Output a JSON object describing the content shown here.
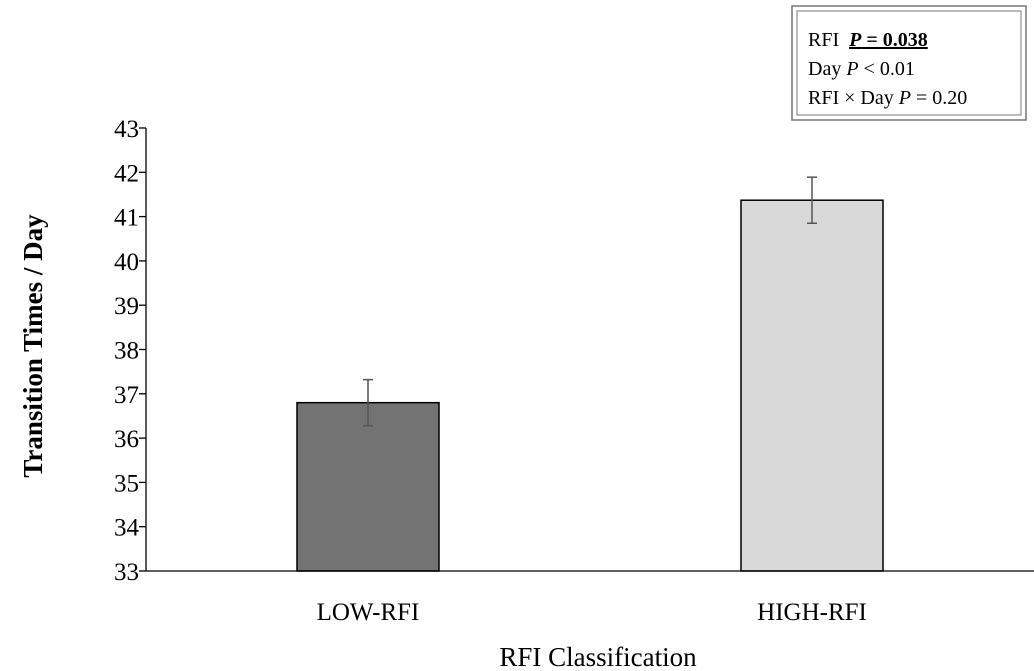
{
  "chart_data": {
    "type": "bar",
    "categories": [
      "LOW-RFI",
      "HIGH-RFI"
    ],
    "values": [
      36.8,
      41.37
    ],
    "errors": [
      0.52,
      0.52
    ],
    "colors": [
      "#737373",
      "#d9d9d9"
    ],
    "xlabel": "RFI Classification",
    "ylabel": "Transition Times / Day",
    "ylim": [
      33,
      43
    ],
    "yticks": [
      33,
      34,
      35,
      36,
      37,
      38,
      39,
      40,
      41,
      42,
      43
    ],
    "grid": false,
    "annotations": {
      "line1_label": "RFI",
      "line1_p": "P",
      "line1_value": " = 0.038",
      "line2_label": "Day ",
      "line2_p": "P",
      "line2_value": " < 0.01",
      "line3_label": "RFI × Day ",
      "line3_p": "P",
      "line3_value": " = 0.20"
    }
  }
}
